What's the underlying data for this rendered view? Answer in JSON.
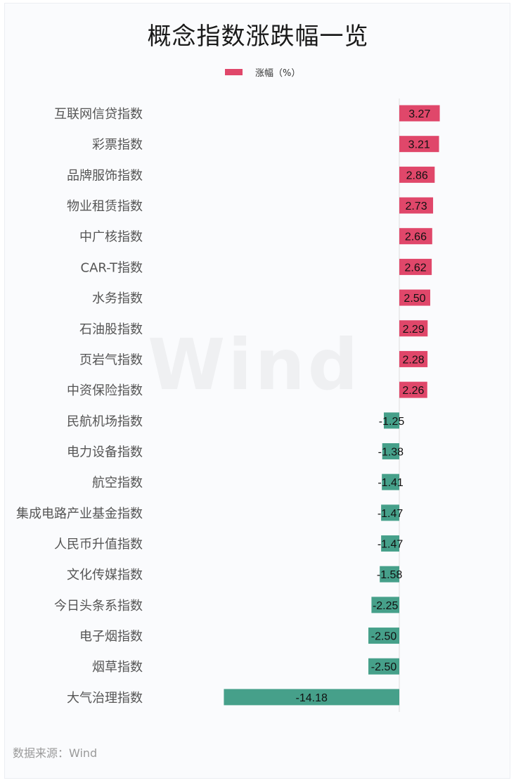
{
  "title": "概念指数涨跌幅一览",
  "legend": {
    "label": "涨幅（%）",
    "color": "#e0476a"
  },
  "footer": "数据来源：Wind",
  "watermark": "Wind",
  "colors": {
    "positive": "#e0476a",
    "negative": "#46a08a",
    "axis": "#dddddd"
  },
  "chart_data": {
    "type": "bar",
    "orientation": "horizontal",
    "title": "概念指数涨跌幅一览",
    "categories": [
      "互联网信贷指数",
      "彩票指数",
      "品牌服饰指数",
      "物业租赁指数",
      "中广核指数",
      "CAR-T指数",
      "水务指数",
      "石油股指数",
      "页岩气指数",
      "中资保险指数",
      "民航机场指数",
      "电力设备指数",
      "航空指数",
      "集成电路产业基金指数",
      "人民币升值指数",
      "文化传媒指数",
      "今日头条系指数",
      "电子烟指数",
      "烟草指数",
      "大气治理指数"
    ],
    "series": [
      {
        "name": "涨幅（%）",
        "values": [
          3.27,
          3.21,
          2.86,
          2.73,
          2.66,
          2.62,
          2.5,
          2.29,
          2.28,
          2.26,
          -1.25,
          -1.38,
          -1.41,
          -1.47,
          -1.47,
          -1.58,
          -2.25,
          -2.5,
          -2.5,
          -14.18
        ],
        "labels": [
          "3.27",
          "3.21",
          "2.86",
          "2.73",
          "2.66",
          "2.62",
          "2.50",
          "2.29",
          "2.28",
          "2.26",
          "-1.25",
          "-1.38",
          "-1.41",
          "-1.47",
          "-1.47",
          "-1.58",
          "-2.25",
          "-2.50",
          "-2.50",
          "-14.18"
        ]
      }
    ],
    "legend_position": "top",
    "grid": false
  }
}
